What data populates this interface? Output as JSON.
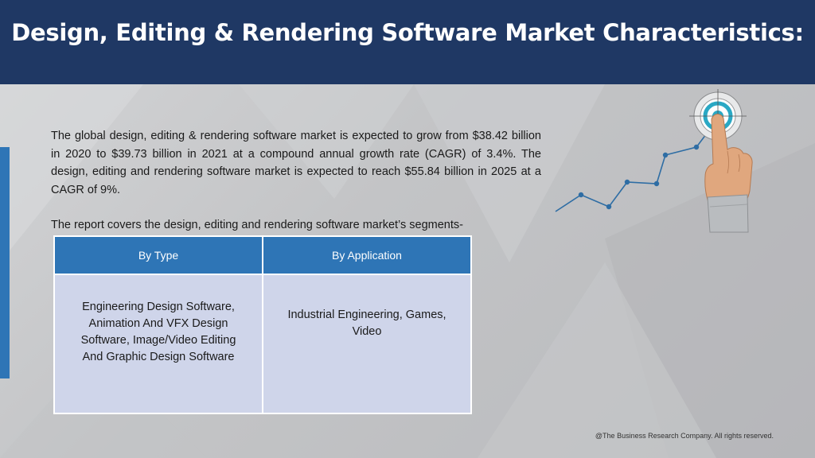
{
  "slide": {
    "title": "Design, Editing & Rendering Software Market Characteristics:",
    "intro_paragraph": "The global design, editing & rendering software market is expected to grow from $38.42 billion in 2020 to $39.73 billion in 2021 at a compound annual growth rate (CAGR) of 3.4%. The design, editing and rendering software market is expected to reach $55.84 billion in 2025 at a CAGR of 9%.",
    "segments_lead": "The report covers the design, editing and rendering software market’s segments-",
    "table": {
      "headers": [
        "By Type",
        "By Application"
      ],
      "cells": [
        "Engineering Design Software, Animation And VFX Design Software, Image/Video Editing And Graphic Design Software",
        "Industrial Engineering, Games, Video"
      ]
    },
    "footer": "@The Business Research Company. All rights reserved.",
    "graphic_icon": "hand-pointing-target-growth-icon"
  },
  "colors": {
    "header_bg": "#1f3864",
    "accent_blue": "#2e75b6",
    "table_body_bg": "#cfd5ea",
    "chart_line": "#2e6da4",
    "target_ring": "#2aa8c4"
  }
}
